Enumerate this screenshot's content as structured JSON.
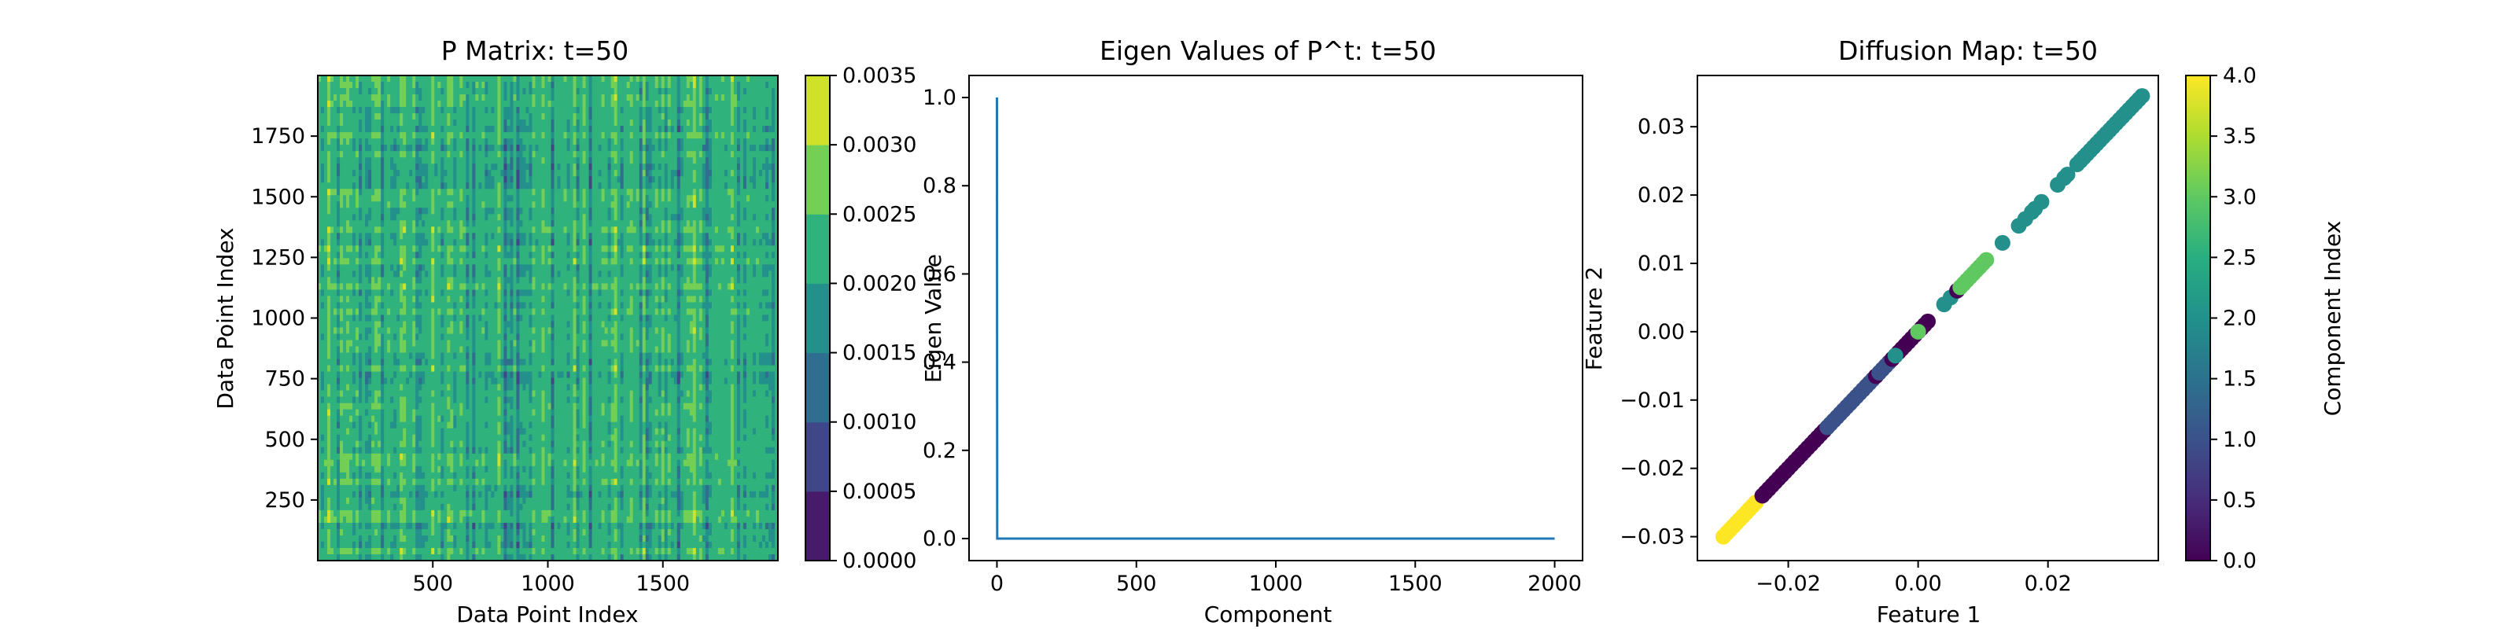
{
  "chart_data": [
    {
      "type": "heatmap",
      "title": "P Matrix: t=50",
      "xlabel": "Data Point Index",
      "ylabel": "Data Point Index",
      "xlim": [
        0,
        2000
      ],
      "ylim": [
        0,
        2000
      ],
      "xticks": [
        500,
        1000,
        1500
      ],
      "yticks": [
        250,
        500,
        750,
        1000,
        1250,
        1500,
        1750
      ],
      "colormap": "viridis",
      "colorbar": {
        "ticks": [
          "0.0000",
          "0.0005",
          "0.0010",
          "0.0015",
          "0.0020",
          "0.0025",
          "0.0030",
          "0.0035"
        ],
        "range": [
          0,
          0.0035
        ],
        "levels": 7
      },
      "dominant_level_range": [
        0.0015,
        0.0025
      ]
    },
    {
      "type": "line",
      "title": "Eigen Values of P^t: t=50",
      "xlabel": "Component",
      "ylabel": "Eigen Value",
      "xlim": [
        -100,
        2100
      ],
      "ylim": [
        -0.05,
        1.05
      ],
      "xticks": [
        0,
        500,
        1000,
        1500,
        2000
      ],
      "yticks": [
        "0.0",
        "0.2",
        "0.4",
        "0.6",
        "0.8",
        "1.0"
      ],
      "color": "#1f77b4",
      "series": [
        {
          "x": [
            0,
            1,
            2000
          ],
          "y": [
            1.0,
            0.0,
            0.0
          ]
        }
      ]
    },
    {
      "type": "scatter",
      "title": "Diffusion Map: t=50",
      "xlabel": "Feature 1",
      "ylabel": "Feature 2",
      "xlim": [
        -0.034,
        0.037
      ],
      "ylim": [
        -0.0335,
        0.0375
      ],
      "xticks": [
        "−0.02",
        "0.00",
        "0.02"
      ],
      "yticks": [
        "−0.03",
        "−0.02",
        "−0.01",
        "0.00",
        "0.01",
        "0.02",
        "0.03"
      ],
      "colormap": "viridis",
      "colorbar": {
        "label": "Component Index",
        "ticks": [
          "0.0",
          "0.5",
          "1.0",
          "1.5",
          "2.0",
          "2.5",
          "3.0",
          "3.5",
          "4.0"
        ],
        "range": [
          0,
          4
        ]
      },
      "points": [
        {
          "x": -0.03,
          "y": -0.03,
          "c": 4
        },
        {
          "x": -0.0295,
          "y": -0.0295,
          "c": 4
        },
        {
          "x": -0.029,
          "y": -0.029,
          "c": 4
        },
        {
          "x": -0.0285,
          "y": -0.0285,
          "c": 4
        },
        {
          "x": -0.028,
          "y": -0.028,
          "c": 4
        },
        {
          "x": -0.0275,
          "y": -0.0275,
          "c": 4
        },
        {
          "x": -0.027,
          "y": -0.027,
          "c": 4
        },
        {
          "x": -0.0265,
          "y": -0.0265,
          "c": 4
        },
        {
          "x": -0.026,
          "y": -0.026,
          "c": 4
        },
        {
          "x": -0.0255,
          "y": -0.0255,
          "c": 4
        },
        {
          "x": -0.025,
          "y": -0.025,
          "c": 4
        },
        {
          "x": -0.024,
          "y": -0.024,
          "c": 0
        },
        {
          "x": -0.0235,
          "y": -0.0235,
          "c": 0
        },
        {
          "x": -0.023,
          "y": -0.023,
          "c": 0
        },
        {
          "x": -0.0225,
          "y": -0.0225,
          "c": 0
        },
        {
          "x": -0.022,
          "y": -0.022,
          "c": 0
        },
        {
          "x": -0.0215,
          "y": -0.0215,
          "c": 0
        },
        {
          "x": -0.021,
          "y": -0.021,
          "c": 0
        },
        {
          "x": -0.0205,
          "y": -0.0205,
          "c": 0
        },
        {
          "x": -0.02,
          "y": -0.02,
          "c": 0
        },
        {
          "x": -0.0195,
          "y": -0.0195,
          "c": 0
        },
        {
          "x": -0.019,
          "y": -0.019,
          "c": 0
        },
        {
          "x": -0.0185,
          "y": -0.0185,
          "c": 0
        },
        {
          "x": -0.018,
          "y": -0.018,
          "c": 0
        },
        {
          "x": -0.0175,
          "y": -0.0175,
          "c": 0
        },
        {
          "x": -0.017,
          "y": -0.017,
          "c": 0
        },
        {
          "x": -0.0165,
          "y": -0.0165,
          "c": 0
        },
        {
          "x": -0.016,
          "y": -0.016,
          "c": 0
        },
        {
          "x": -0.0155,
          "y": -0.0155,
          "c": 0
        },
        {
          "x": -0.015,
          "y": -0.015,
          "c": 0
        },
        {
          "x": -0.0145,
          "y": -0.0145,
          "c": 0
        },
        {
          "x": -0.014,
          "y": -0.014,
          "c": 1
        },
        {
          "x": -0.0135,
          "y": -0.0135,
          "c": 1
        },
        {
          "x": -0.013,
          "y": -0.013,
          "c": 1
        },
        {
          "x": -0.0125,
          "y": -0.0125,
          "c": 1
        },
        {
          "x": -0.012,
          "y": -0.012,
          "c": 1
        },
        {
          "x": -0.0115,
          "y": -0.0115,
          "c": 1
        },
        {
          "x": -0.011,
          "y": -0.011,
          "c": 1
        },
        {
          "x": -0.0105,
          "y": -0.0105,
          "c": 1
        },
        {
          "x": -0.01,
          "y": -0.01,
          "c": 1
        },
        {
          "x": -0.0095,
          "y": -0.0095,
          "c": 1
        },
        {
          "x": -0.009,
          "y": -0.009,
          "c": 1
        },
        {
          "x": -0.0085,
          "y": -0.0085,
          "c": 1
        },
        {
          "x": -0.008,
          "y": -0.008,
          "c": 1
        },
        {
          "x": -0.0075,
          "y": -0.0075,
          "c": 1
        },
        {
          "x": -0.007,
          "y": -0.007,
          "c": 1
        },
        {
          "x": -0.0065,
          "y": -0.0065,
          "c": 0
        },
        {
          "x": -0.006,
          "y": -0.006,
          "c": 1
        },
        {
          "x": -0.0055,
          "y": -0.0055,
          "c": 1
        },
        {
          "x": -0.005,
          "y": -0.005,
          "c": 1
        },
        {
          "x": -0.0045,
          "y": -0.0045,
          "c": 1
        },
        {
          "x": -0.004,
          "y": -0.004,
          "c": 0
        },
        {
          "x": -0.0035,
          "y": -0.0035,
          "c": 0
        },
        {
          "x": -0.003,
          "y": -0.003,
          "c": 0
        },
        {
          "x": -0.0025,
          "y": -0.0025,
          "c": 0
        },
        {
          "x": -0.002,
          "y": -0.002,
          "c": 0
        },
        {
          "x": -0.0015,
          "y": -0.0015,
          "c": 0
        },
        {
          "x": -0.001,
          "y": -0.001,
          "c": 0
        },
        {
          "x": -0.0005,
          "y": -0.0005,
          "c": 0
        },
        {
          "x": 0.0,
          "y": 0.0,
          "c": 0
        },
        {
          "x": 0.0005,
          "y": 0.0005,
          "c": 0
        },
        {
          "x": 0.001,
          "y": 0.001,
          "c": 0
        },
        {
          "x": 0.0015,
          "y": 0.0015,
          "c": 0
        },
        {
          "x": -0.0035,
          "y": -0.0035,
          "c": 2
        },
        {
          "x": 0.0,
          "y": 0.0,
          "c": 3
        },
        {
          "x": 0.004,
          "y": 0.004,
          "c": 2
        },
        {
          "x": 0.005,
          "y": 0.005,
          "c": 2
        },
        {
          "x": 0.006,
          "y": 0.006,
          "c": 0
        },
        {
          "x": 0.0065,
          "y": 0.0065,
          "c": 3
        },
        {
          "x": 0.007,
          "y": 0.007,
          "c": 3
        },
        {
          "x": 0.0075,
          "y": 0.0075,
          "c": 3
        },
        {
          "x": 0.008,
          "y": 0.008,
          "c": 3
        },
        {
          "x": 0.0085,
          "y": 0.0085,
          "c": 3
        },
        {
          "x": 0.009,
          "y": 0.009,
          "c": 3
        },
        {
          "x": 0.0095,
          "y": 0.0095,
          "c": 3
        },
        {
          "x": 0.01,
          "y": 0.01,
          "c": 3
        },
        {
          "x": 0.0105,
          "y": 0.0105,
          "c": 3
        },
        {
          "x": 0.013,
          "y": 0.013,
          "c": 2
        },
        {
          "x": 0.0155,
          "y": 0.0155,
          "c": 2
        },
        {
          "x": 0.0165,
          "y": 0.0165,
          "c": 2
        },
        {
          "x": 0.0175,
          "y": 0.0175,
          "c": 2
        },
        {
          "x": 0.018,
          "y": 0.018,
          "c": 2
        },
        {
          "x": 0.019,
          "y": 0.019,
          "c": 2
        },
        {
          "x": 0.0215,
          "y": 0.0215,
          "c": 2
        },
        {
          "x": 0.0225,
          "y": 0.0225,
          "c": 2
        },
        {
          "x": 0.023,
          "y": 0.023,
          "c": 2
        },
        {
          "x": 0.0245,
          "y": 0.0245,
          "c": 2
        },
        {
          "x": 0.025,
          "y": 0.025,
          "c": 2
        },
        {
          "x": 0.0255,
          "y": 0.0255,
          "c": 2
        },
        {
          "x": 0.026,
          "y": 0.026,
          "c": 2
        },
        {
          "x": 0.0265,
          "y": 0.0265,
          "c": 2
        },
        {
          "x": 0.027,
          "y": 0.027,
          "c": 2
        },
        {
          "x": 0.0275,
          "y": 0.0275,
          "c": 2
        },
        {
          "x": 0.028,
          "y": 0.028,
          "c": 2
        },
        {
          "x": 0.0285,
          "y": 0.0285,
          "c": 2
        },
        {
          "x": 0.029,
          "y": 0.029,
          "c": 2
        },
        {
          "x": 0.0295,
          "y": 0.0295,
          "c": 2
        },
        {
          "x": 0.03,
          "y": 0.03,
          "c": 2
        },
        {
          "x": 0.0305,
          "y": 0.0305,
          "c": 2
        },
        {
          "x": 0.031,
          "y": 0.031,
          "c": 2
        },
        {
          "x": 0.0315,
          "y": 0.0315,
          "c": 2
        },
        {
          "x": 0.032,
          "y": 0.032,
          "c": 2
        },
        {
          "x": 0.0325,
          "y": 0.0325,
          "c": 2
        },
        {
          "x": 0.033,
          "y": 0.033,
          "c": 2
        },
        {
          "x": 0.0335,
          "y": 0.0335,
          "c": 2
        },
        {
          "x": 0.034,
          "y": 0.034,
          "c": 2
        },
        {
          "x": 0.0345,
          "y": 0.0345,
          "c": 2
        }
      ]
    }
  ]
}
